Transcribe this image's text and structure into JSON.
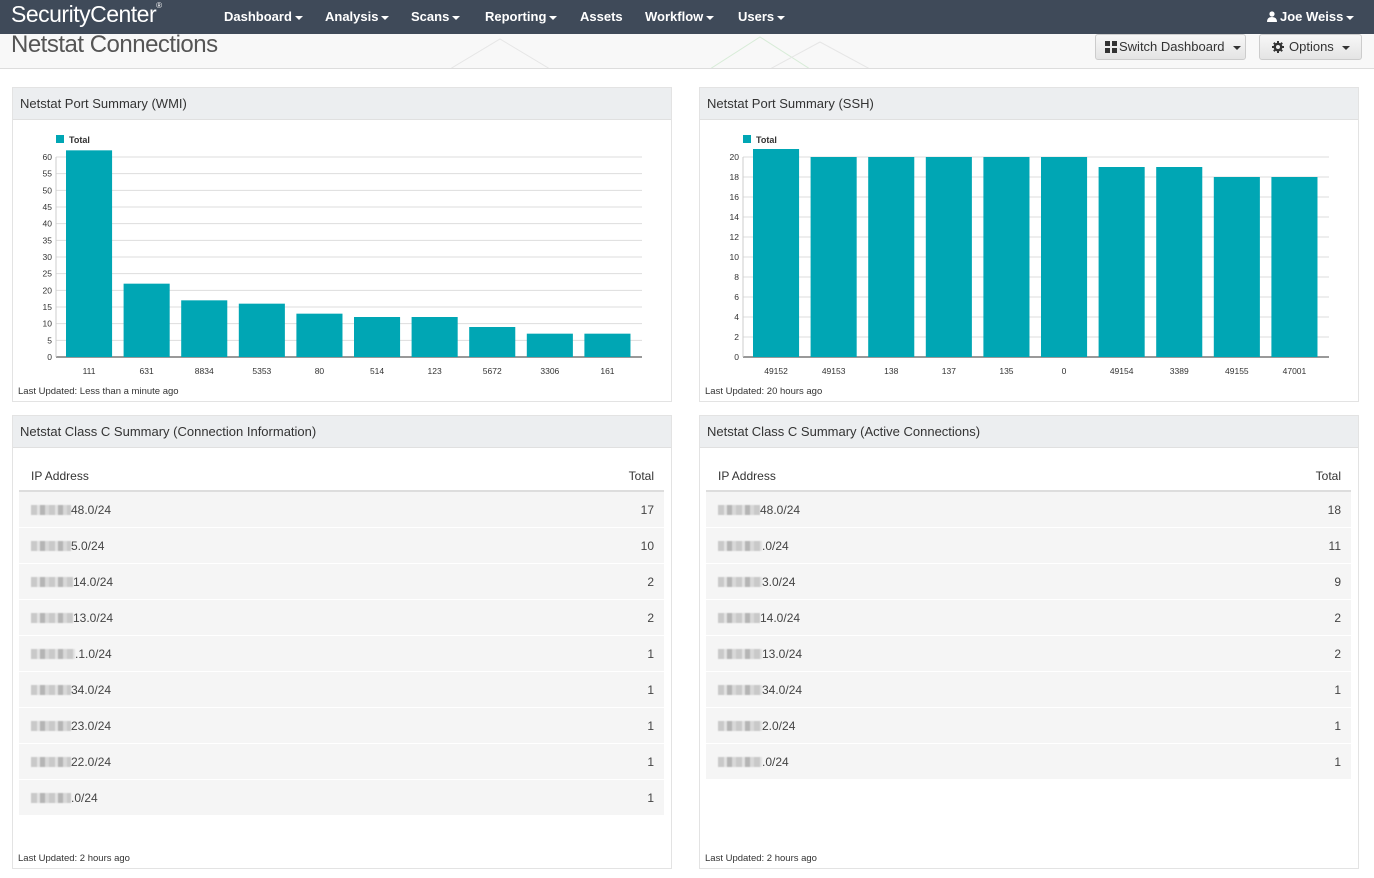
{
  "app": {
    "brand": "SecurityCenter",
    "trademark": "®"
  },
  "nav": {
    "items": [
      {
        "label": "Dashboard",
        "caret": true
      },
      {
        "label": "Analysis",
        "caret": true
      },
      {
        "label": "Scans",
        "caret": true
      },
      {
        "label": "Reporting",
        "caret": true
      },
      {
        "label": "Assets",
        "caret": false
      },
      {
        "label": "Workflow",
        "caret": true
      },
      {
        "label": "Users",
        "caret": true
      }
    ],
    "user": "Joe Weiss"
  },
  "header": {
    "title": "Netstat Connections",
    "switch_label": "Switch Dashboard",
    "options_label": "Options"
  },
  "panels": {
    "wmi": {
      "title": "Netstat Port Summary (WMI)",
      "updated": "Last Updated: Less than a minute ago"
    },
    "ssh": {
      "title": "Netstat Port Summary (SSH)",
      "updated": "Last Updated: 20 hours ago"
    },
    "conn": {
      "title": "Netstat Class C Summary (Connection Information)",
      "updated": "Last Updated: 2 hours ago",
      "columns": [
        "IP Address",
        "Total"
      ],
      "rows": [
        {
          "ip": "48.0/24",
          "total": "17"
        },
        {
          "ip": "5.0/24",
          "total": "10"
        },
        {
          "ip": "14.0/24",
          "total": "2"
        },
        {
          "ip": "13.0/24",
          "total": "2"
        },
        {
          "ip": ".1.0/24",
          "total": "1"
        },
        {
          "ip": "34.0/24",
          "total": "1"
        },
        {
          "ip": "23.0/24",
          "total": "1"
        },
        {
          "ip": "22.0/24",
          "total": "1"
        },
        {
          "ip": ".0/24",
          "total": "1"
        }
      ]
    },
    "active": {
      "title": "Netstat Class C Summary (Active Connections)",
      "updated": "Last Updated: 2 hours ago",
      "columns": [
        "IP Address",
        "Total"
      ],
      "rows": [
        {
          "ip": "48.0/24",
          "total": "18"
        },
        {
          "ip": ".0/24",
          "total": "11"
        },
        {
          "ip": "3.0/24",
          "total": "9"
        },
        {
          "ip": "14.0/24",
          "total": "2"
        },
        {
          "ip": "13.0/24",
          "total": "2"
        },
        {
          "ip": "34.0/24",
          "total": "1"
        },
        {
          "ip": "2.0/24",
          "total": "1"
        },
        {
          "ip": ".0/24",
          "total": "1"
        }
      ]
    }
  },
  "chart_data": [
    {
      "type": "bar",
      "title": "Netstat Port Summary (WMI)",
      "legend": "Total",
      "categories": [
        "111",
        "631",
        "8834",
        "5353",
        "80",
        "514",
        "123",
        "5672",
        "3306",
        "161"
      ],
      "values": [
        62,
        22,
        17,
        16,
        13,
        12,
        12,
        9,
        7,
        7
      ],
      "ylim": [
        0,
        60
      ],
      "yticks": [
        0,
        5,
        10,
        15,
        20,
        25,
        30,
        35,
        40,
        45,
        50,
        55,
        60
      ],
      "color": "#00a6b4"
    },
    {
      "type": "bar",
      "title": "Netstat Port Summary (SSH)",
      "legend": "Total",
      "categories": [
        "49152",
        "49153",
        "138",
        "137",
        "135",
        "0",
        "49154",
        "3389",
        "49155",
        "47001"
      ],
      "values": [
        21,
        20,
        20,
        20,
        20,
        20,
        19,
        19,
        18,
        18
      ],
      "ylim": [
        0,
        20
      ],
      "yticks": [
        0,
        2,
        4,
        6,
        8,
        10,
        12,
        14,
        16,
        18,
        20
      ],
      "color": "#00a6b4"
    }
  ]
}
